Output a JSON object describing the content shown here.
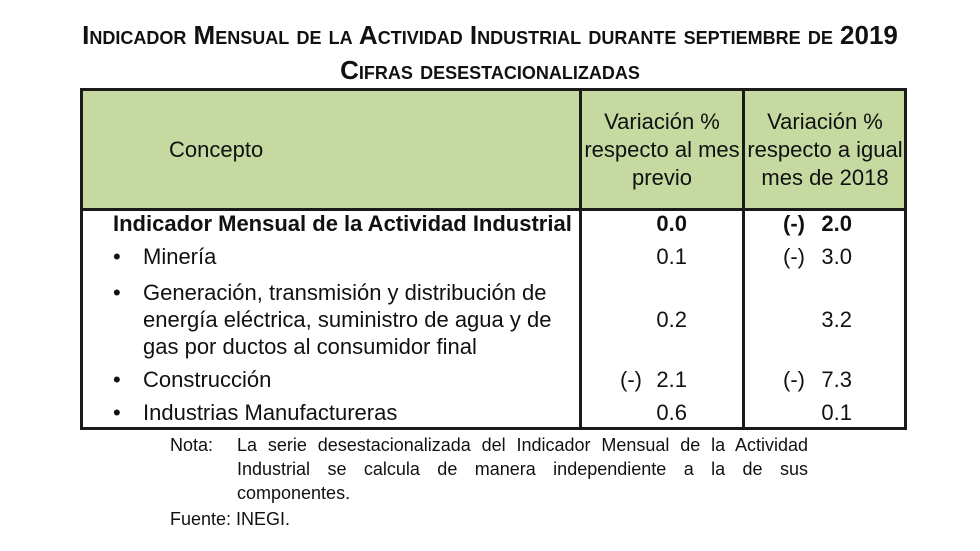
{
  "title_line1": "Indicador Mensual de la Actividad Industrial durante septiembre de 2019",
  "title_line2": "Cifras desestacionalizadas",
  "table": {
    "headers": {
      "concepto": "Concepto",
      "var_previo": "Variación % respecto al mes previo",
      "var_anual": "Variación % respecto a igual mes de 2018"
    },
    "rows": [
      {
        "concepto": "Indicador Mensual de la Actividad Industrial",
        "bullet": "",
        "neg1": "",
        "v1": "0.0",
        "neg2": "(-)",
        "v2": "2.0",
        "bold": true
      },
      {
        "concepto": "Minería",
        "bullet": "•",
        "neg1": "",
        "v1": "0.1",
        "neg2": "(-)",
        "v2": "3.0"
      },
      {
        "concepto": "Generación, transmisión y distribución de energía eléctrica, suministro de agua y de gas por ductos al consumidor final",
        "bullet": "•",
        "neg1": "",
        "v1": "0.2",
        "neg2": "",
        "v2": "3.2"
      },
      {
        "concepto": "Construcción",
        "bullet": "•",
        "neg1": "(-)",
        "v1": "2.1",
        "neg2": "(-)",
        "v2": "7.3"
      },
      {
        "concepto": "Industrias Manufactureras",
        "bullet": "•",
        "neg1": "",
        "v1": "0.6",
        "neg2": "",
        "v2": "0.1"
      }
    ]
  },
  "note": {
    "label": "Nota:",
    "text": "La serie desestacionalizada del Indicador Mensual de la Actividad Industrial se calcula de manera independiente a la de sus componentes."
  },
  "source": "Fuente: INEGI."
}
